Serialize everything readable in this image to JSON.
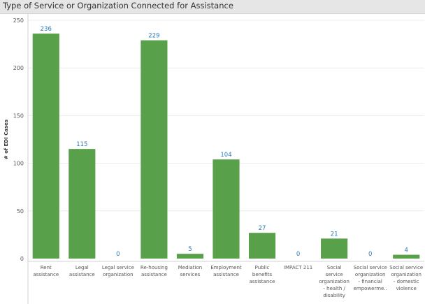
{
  "title": "Type of Service or Organization Connected for Assistance",
  "colors": {
    "bar": "#58a04a",
    "data_label": "#2a7ab8",
    "title_bg": "#e6e6e6"
  },
  "chart_data": {
    "type": "bar",
    "title": "Type of Service or Organization Connected for Assistance",
    "ylabel": "# of EDI Cases",
    "xlabel": "",
    "ylim": [
      0,
      250
    ],
    "yticks": [
      0,
      50,
      100,
      150,
      200,
      250
    ],
    "grid": true,
    "categories": [
      [
        "Rent",
        "assistance"
      ],
      [
        "Legal",
        "assistance"
      ],
      [
        "Legal service",
        "organization"
      ],
      [
        "Re-housing",
        "assistance"
      ],
      [
        "Mediation",
        "services"
      ],
      [
        "Employment",
        "assistance"
      ],
      [
        "Public",
        "benefits",
        "assistance"
      ],
      [
        "IMPACT 211"
      ],
      [
        "Social",
        "service",
        "organization",
        "- health /",
        "disability"
      ],
      [
        "Social service",
        "organization",
        "- financial",
        "empowerme.."
      ],
      [
        "Social service",
        "organization",
        "- domestic",
        "violence"
      ]
    ],
    "values": [
      236,
      115,
      0,
      229,
      5,
      104,
      27,
      0,
      21,
      0,
      4
    ],
    "data_labels": [
      "236",
      "115",
      "0",
      "229",
      "5",
      "104",
      "27",
      "0",
      "21",
      "0",
      "4"
    ]
  }
}
